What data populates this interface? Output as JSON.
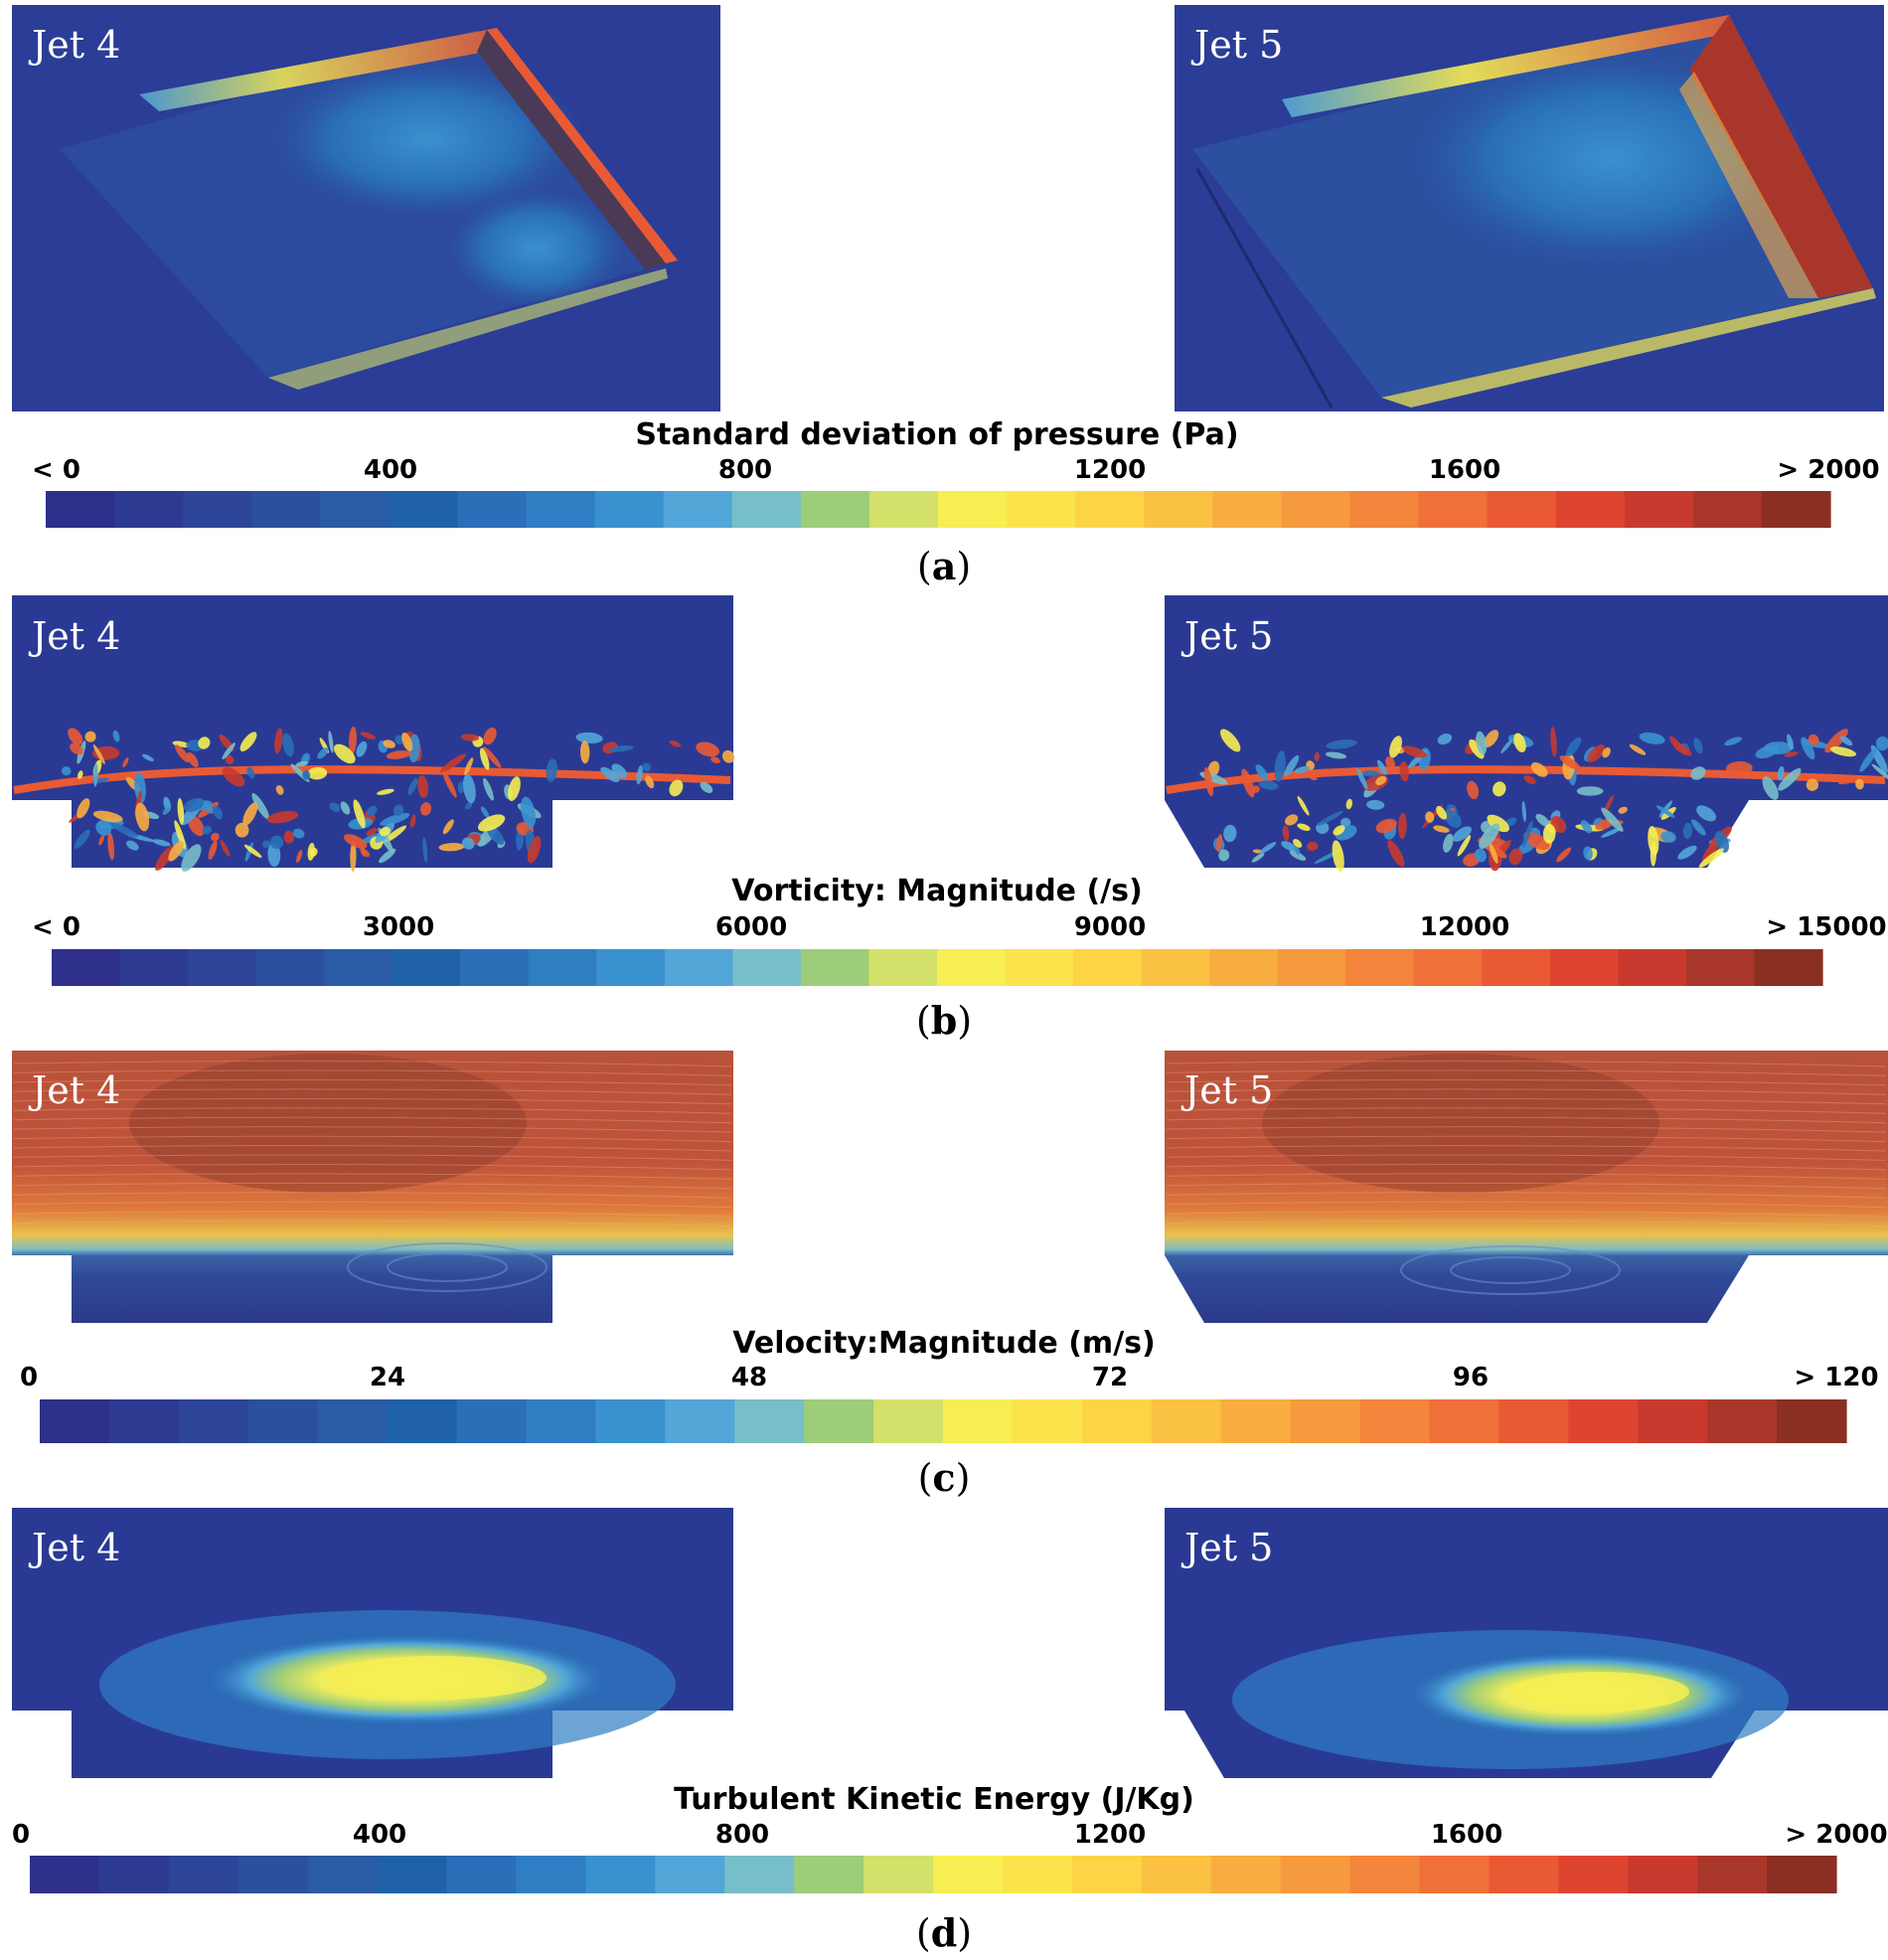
{
  "colormap": [
    "#2e2f8a",
    "#2d3a92",
    "#2c4598",
    "#2b509e",
    "#2a5ba5",
    "#1f62aa",
    "#2a6fb8",
    "#2f7ec4",
    "#3a91cf",
    "#52a6d8",
    "#77bfc8",
    "#9dcd7a",
    "#d3e06a",
    "#f6ee52",
    "#fbe44b",
    "#fcd446",
    "#fbc143",
    "#f9ad41",
    "#f69a3f",
    "#f3853c",
    "#ef7038",
    "#e95a34",
    "#de4530",
    "#c93a2e",
    "#a9362b",
    "#8a2f22"
  ],
  "panels": [
    {
      "letter": "a",
      "colorbar_title": "Standard deviation of pressure (Pa)",
      "ticks": [
        "< 0",
        "400",
        "800",
        "1200",
        "1600",
        "> 2000"
      ],
      "jets": [
        "Jet 4",
        "Jet 5"
      ],
      "field": "pressure-std"
    },
    {
      "letter": "b",
      "colorbar_title": "Vorticity: Magnitude (/s)",
      "ticks": [
        "< 0",
        "3000",
        "6000",
        "9000",
        "12000",
        "> 15000"
      ],
      "jets": [
        "Jet 4",
        "Jet 5"
      ],
      "field": "vorticity"
    },
    {
      "letter": "c",
      "colorbar_title": "Velocity:Magnitude (m/s)",
      "ticks": [
        "0",
        "24",
        "48",
        "72",
        "96",
        "> 120"
      ],
      "jets": [
        "Jet 4",
        "Jet 5"
      ],
      "field": "velocity"
    },
    {
      "letter": "d",
      "colorbar_title": "Turbulent Kinetic Energy (J/Kg)",
      "ticks": [
        "0",
        "400",
        "800",
        "1200",
        "1600",
        "> 2000"
      ],
      "jets": [
        "Jet 4",
        "Jet 5"
      ],
      "field": "tke"
    }
  ]
}
